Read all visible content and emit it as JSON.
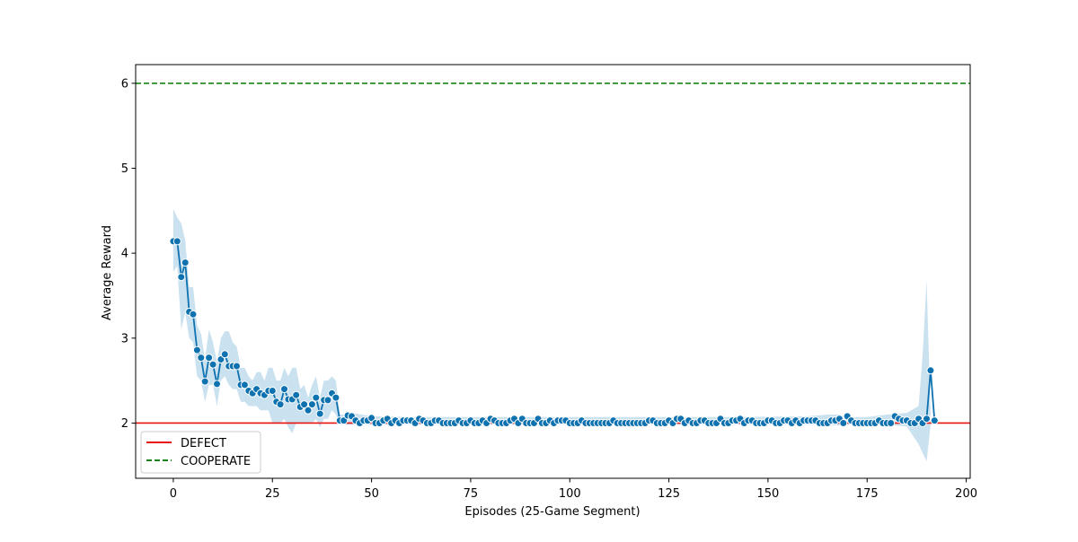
{
  "chart_data": {
    "type": "line",
    "xlabel": "Episodes (25-Game Segment)",
    "ylabel": "Average Reward",
    "xlim": [
      -9.5,
      201
    ],
    "ylim": [
      1.35,
      6.22
    ],
    "xticks": [
      0,
      25,
      50,
      75,
      100,
      125,
      150,
      175,
      200
    ],
    "yticks": [
      2,
      3,
      4,
      5,
      6
    ],
    "grid": false,
    "legend": "lower-left",
    "colors": {
      "series": "#0e72b0",
      "band": "#9ec8e3",
      "defect": "#e8130f",
      "cooperate": "#168416"
    },
    "reference_lines": [
      {
        "name": "DEFECT",
        "y": 2,
        "style": "solid"
      },
      {
        "name": "COOPERATE",
        "y": 6,
        "style": "dashed"
      }
    ],
    "series": [
      {
        "x_start": 0,
        "values": [
          4.14,
          4.14,
          3.72,
          3.89,
          3.31,
          3.28,
          2.86,
          2.77,
          2.49,
          2.77,
          2.69,
          2.46,
          2.75,
          2.81,
          2.67,
          2.67,
          2.67,
          2.45,
          2.45,
          2.38,
          2.35,
          2.4,
          2.35,
          2.33,
          2.38,
          2.38,
          2.25,
          2.22,
          2.4,
          2.28,
          2.28,
          2.33,
          2.19,
          2.22,
          2.15,
          2.22,
          2.3,
          2.11,
          2.27,
          2.27,
          2.35,
          2.3,
          2.03,
          2.03,
          2.09,
          2.08,
          2.03,
          2.0,
          2.03,
          2.03,
          2.06,
          2.0,
          2.0,
          2.03,
          2.05,
          2.0,
          2.03,
          2.0,
          2.03,
          2.03,
          2.03,
          2.0,
          2.05,
          2.03,
          2.0,
          2.0,
          2.03,
          2.03,
          2.0,
          2.0,
          2.0,
          2.0,
          2.03,
          2.0,
          2.0,
          2.03,
          2.0,
          2.0,
          2.03,
          2.0,
          2.05,
          2.03,
          2.0,
          2.0,
          2.0,
          2.03,
          2.05,
          2.0,
          2.05,
          2.0,
          2.0,
          2.0,
          2.05,
          2.0,
          2.0,
          2.03,
          2.0,
          2.03,
          2.03,
          2.03,
          2.0,
          2.0,
          2.0,
          2.03,
          2.0,
          2.0,
          2.0,
          2.0,
          2.0,
          2.0,
          2.0,
          2.03,
          2.0,
          2.0,
          2.0,
          2.0,
          2.0,
          2.0,
          2.0,
          2.0,
          2.03,
          2.03,
          2.0,
          2.0,
          2.0,
          2.03,
          2.0,
          2.05,
          2.05,
          2.0,
          2.03,
          2.0,
          2.0,
          2.03,
          2.03,
          2.0,
          2.0,
          2.0,
          2.05,
          2.0,
          2.0,
          2.03,
          2.03,
          2.05,
          2.0,
          2.03,
          2.03,
          2.0,
          2.0,
          2.0,
          2.03,
          2.03,
          2.0,
          2.0,
          2.03,
          2.03,
          2.0,
          2.03,
          2.0,
          2.03,
          2.03,
          2.03,
          2.03,
          2.0,
          2.0,
          2.0,
          2.03,
          2.03,
          2.05,
          2.0,
          2.08,
          2.03,
          2.0,
          2.0,
          2.0,
          2.0,
          2.0,
          2.0,
          2.03,
          2.0,
          2.0,
          2.0,
          2.08,
          2.05,
          2.03,
          2.03,
          2.0,
          2.0,
          2.05,
          2.0,
          2.05,
          2.62,
          2.03
        ]
      }
    ],
    "confidence_band": {
      "x": [
        0,
        1,
        2,
        3,
        4,
        5,
        6,
        7,
        8,
        9,
        10,
        11,
        12,
        13,
        14,
        15,
        16,
        17,
        18,
        19,
        20,
        21,
        22,
        23,
        24,
        25,
        26,
        27,
        28,
        29,
        30,
        31,
        32,
        33,
        34,
        35,
        36,
        37,
        38,
        39,
        40,
        41,
        42,
        43,
        45,
        50,
        60,
        80,
        100,
        120,
        140,
        160,
        165,
        168,
        170,
        175,
        180,
        185,
        188,
        189,
        190,
        191
      ],
      "lower": [
        3.78,
        3.85,
        3.1,
        3.3,
        3.0,
        2.95,
        2.55,
        2.5,
        2.25,
        2.45,
        2.45,
        2.2,
        2.5,
        2.55,
        2.45,
        2.4,
        2.4,
        2.25,
        2.25,
        2.2,
        2.2,
        2.2,
        2.15,
        2.15,
        2.15,
        2.0,
        2.0,
        2.0,
        2.05,
        1.95,
        1.88,
        2.0,
        2.0,
        2.0,
        2.0,
        2.0,
        2.05,
        1.95,
        2.05,
        2.05,
        2.15,
        2.1,
        1.98,
        1.98,
        1.98,
        1.98,
        1.98,
        1.98,
        1.98,
        1.98,
        1.98,
        1.98,
        1.98,
        1.97,
        1.98,
        1.98,
        1.98,
        1.96,
        1.75,
        1.65,
        1.55,
        1.98
      ],
      "upper": [
        4.52,
        4.42,
        4.35,
        4.15,
        3.6,
        3.6,
        3.15,
        3.05,
        2.75,
        3.1,
        2.95,
        2.72,
        3.0,
        3.08,
        3.08,
        2.95,
        2.9,
        2.65,
        2.65,
        2.55,
        2.5,
        2.6,
        2.6,
        2.5,
        2.65,
        2.65,
        2.5,
        2.5,
        2.65,
        2.55,
        2.65,
        2.65,
        2.4,
        2.45,
        2.3,
        2.45,
        2.55,
        2.3,
        2.5,
        2.5,
        2.55,
        2.5,
        2.1,
        2.1,
        2.12,
        2.08,
        2.07,
        2.07,
        2.07,
        2.07,
        2.07,
        2.08,
        2.1,
        2.1,
        2.07,
        2.07,
        2.1,
        2.12,
        2.2,
        2.8,
        3.68,
        2.1
      ]
    }
  }
}
